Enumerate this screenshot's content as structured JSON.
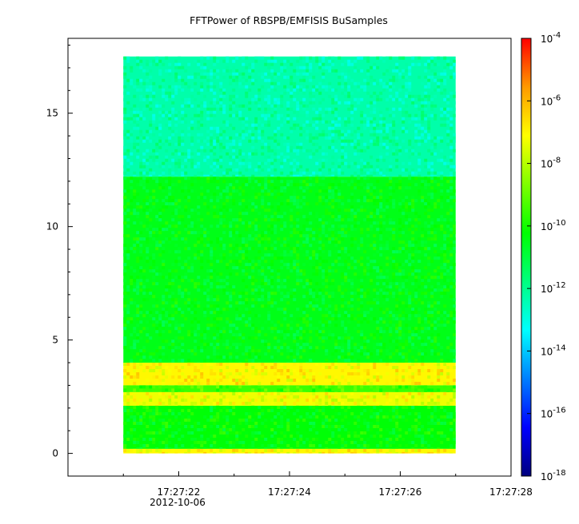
{
  "chart_data": {
    "type": "heatmap",
    "title": "FFTPower of RBSPB/EMFISIS  BuSamples",
    "xlabel": "",
    "ylabel": "",
    "x_start_seconds_label": "17:27:21",
    "x_ticks": [
      "17:27:22",
      "17:27:24",
      "17:27:26",
      "17:27:28"
    ],
    "x_date_label": "2012-10-06",
    "x_range": [
      "17:27:20.0",
      "17:27:28.0"
    ],
    "data_time_range": [
      "17:27:21.0",
      "17:27:27.0"
    ],
    "y_ticks": [
      0,
      5,
      10,
      15
    ],
    "ylim": [
      -1,
      18.3
    ],
    "data_y_range": [
      0,
      17.5
    ],
    "colorbar": {
      "scale": "log",
      "range": [
        1e-18,
        0.0001
      ],
      "tick_labels": [
        {
          "base": "10",
          "exp": "-4"
        },
        {
          "base": "10",
          "exp": "-6"
        },
        {
          "base": "10",
          "exp": "-8"
        },
        {
          "base": "10",
          "exp": "-10"
        },
        {
          "base": "10",
          "exp": "-12"
        },
        {
          "base": "10",
          "exp": "-14"
        },
        {
          "base": "10",
          "exp": "-16"
        },
        {
          "base": "10",
          "exp": "-18"
        }
      ],
      "colors": [
        "#00007f",
        "#0000ff",
        "#007fff",
        "#00ffff",
        "#00ff7f",
        "#00ff00",
        "#7fff00",
        "#ffff00",
        "#ff9900",
        "#ff0000"
      ]
    },
    "bands": [
      {
        "y_range": [
          12.2,
          17.5
        ],
        "typical_power_exp": -12.3,
        "description": "upper band"
      },
      {
        "y_range": [
          4.0,
          12.2
        ],
        "typical_power_exp": -10.5,
        "description": "middle band"
      },
      {
        "y_range": [
          3.0,
          4.0
        ],
        "typical_power_exp": -7.0,
        "description": "emission band upper"
      },
      {
        "y_range": [
          2.7,
          3.0
        ],
        "typical_power_exp": -9.5,
        "description": "gap"
      },
      {
        "y_range": [
          2.1,
          2.7
        ],
        "typical_power_exp": -7.3,
        "description": "emission band lower"
      },
      {
        "y_range": [
          0.2,
          2.1
        ],
        "typical_power_exp": -10.3,
        "description": "lower band"
      },
      {
        "y_range": [
          0.0,
          0.2
        ],
        "typical_power_exp": -7.0,
        "description": "bottom line"
      }
    ]
  }
}
